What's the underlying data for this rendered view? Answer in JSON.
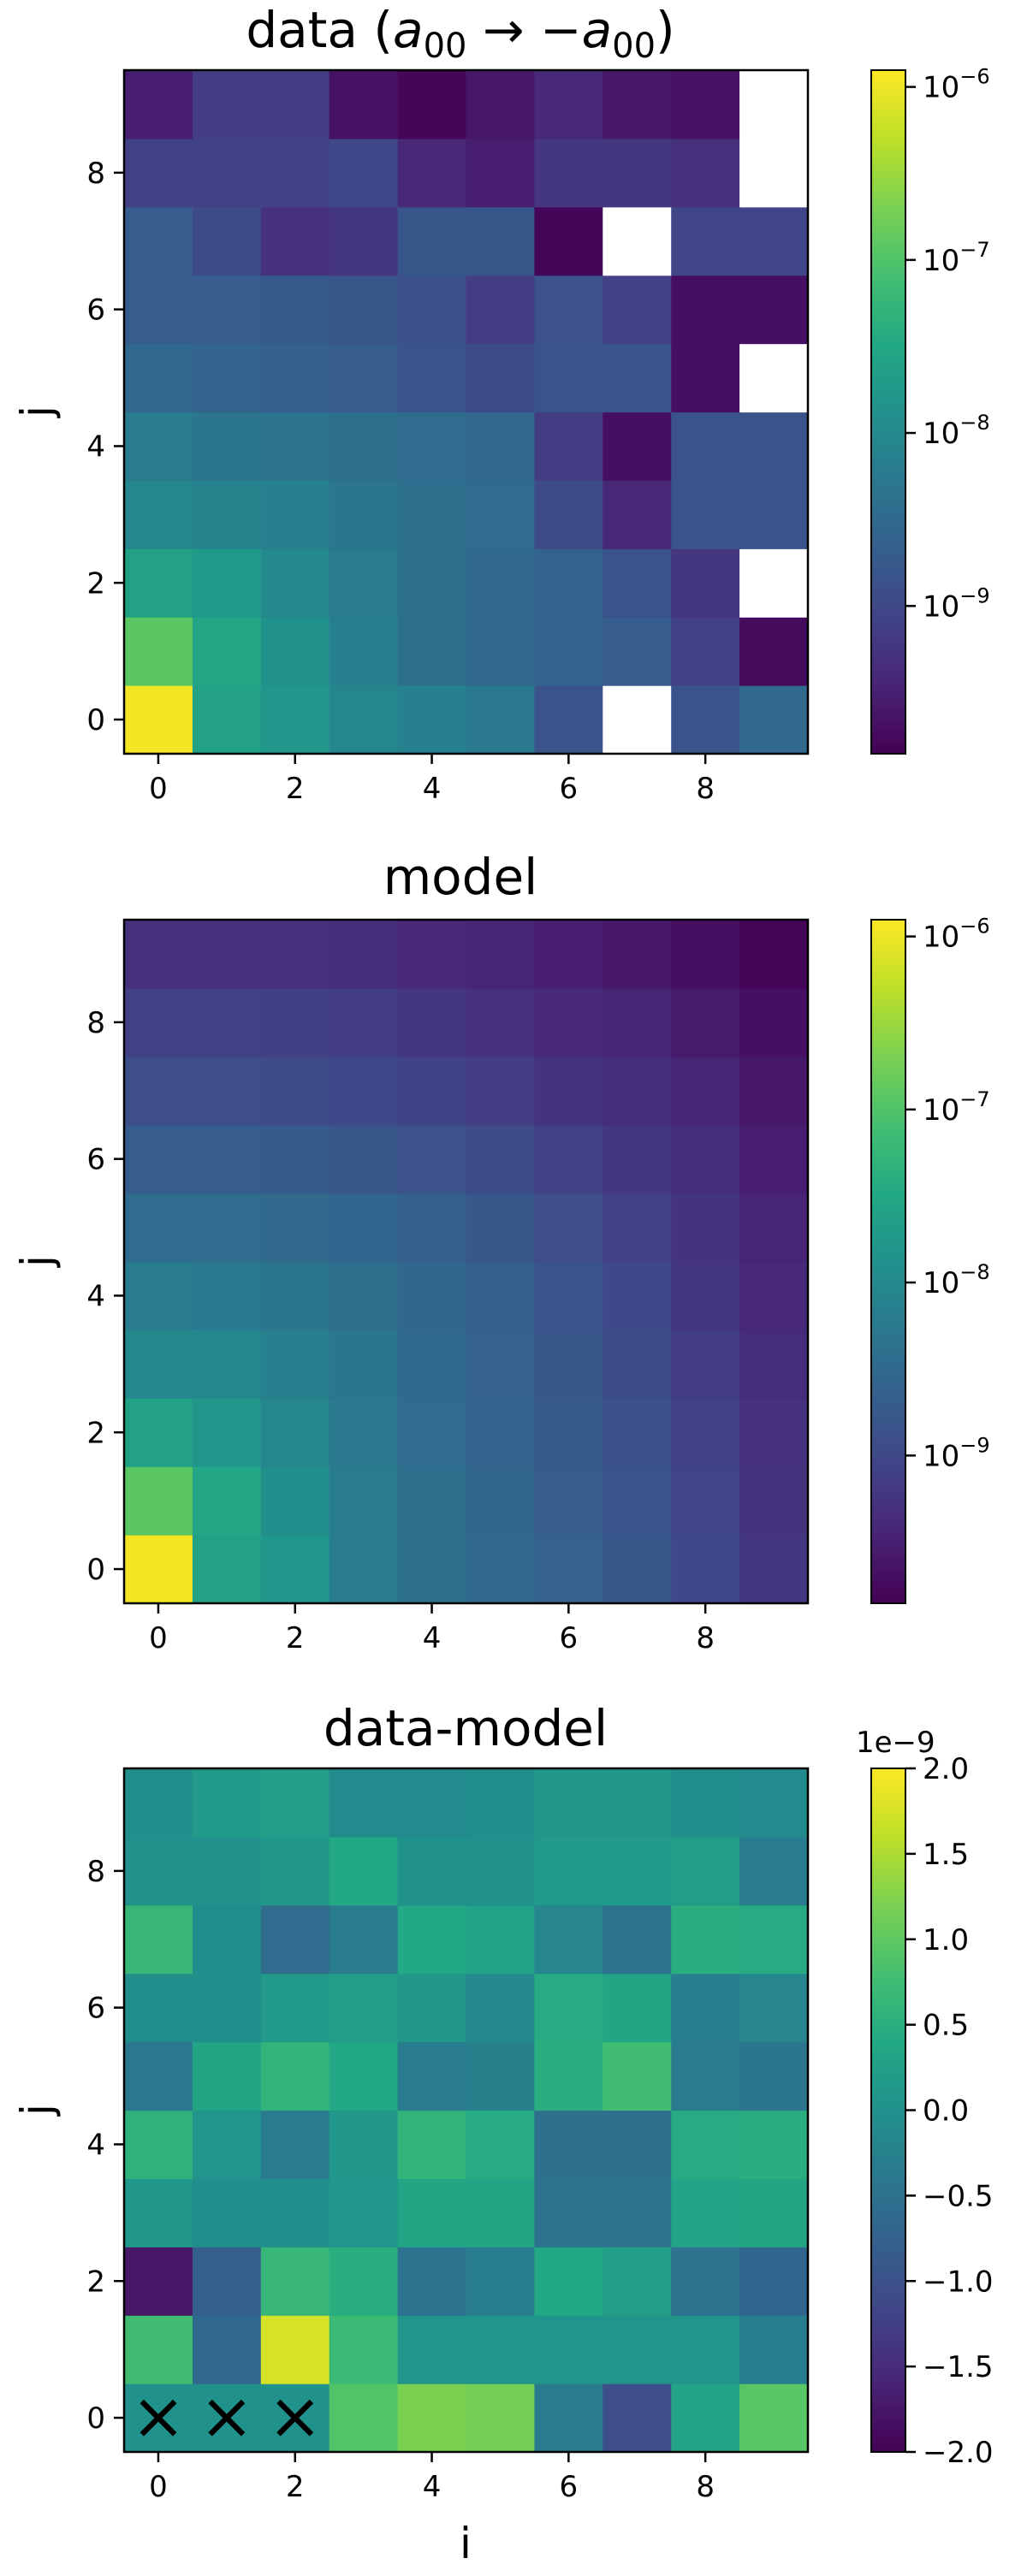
{
  "chart_data": [
    {
      "type": "heatmap",
      "title_plain": "data (",
      "title_math_a": "a",
      "title_math_sub": "00",
      "title_arrow": " → −",
      "title_math_a2": "a",
      "title_math_sub2": "00",
      "title_close": ")",
      "xlabel": "",
      "ylabel": "j",
      "x_ticks": [
        "0",
        "2",
        "4",
        "6",
        "8"
      ],
      "y_ticks": [
        "0",
        "2",
        "4",
        "6",
        "8"
      ],
      "colorscale": "viridis",
      "color_scale_type": "log",
      "clim": [
        1.4e-10,
        1.25e-06
      ],
      "colorbar_ticks": [
        {
          "value": 1e-06,
          "base": "10",
          "exp": "−6"
        },
        {
          "value": 1e-07,
          "base": "10",
          "exp": "−7"
        },
        {
          "value": 1e-08,
          "base": "10",
          "exp": "−8"
        },
        {
          "value": 1e-09,
          "base": "10",
          "exp": "−9"
        }
      ],
      "missing_color": "#ffffff",
      "values_rows_j0_to_j9": [
        [
          1.1e-06,
          2.5e-08,
          1.6e-08,
          9e-09,
          7e-09,
          5.5e-09,
          1.5e-09,
          null,
          1.5e-09,
          3e-09
        ],
        [
          1.2e-07,
          3e-08,
          1.3e-08,
          7e-09,
          4e-09,
          3e-09,
          2.5e-09,
          2e-09,
          8e-10,
          1.8e-10
        ],
        [
          2.5e-08,
          1.8e-08,
          1e-08,
          6e-09,
          4e-09,
          3e-09,
          2.5e-09,
          1.5e-09,
          6e-10,
          null
        ],
        [
          9e-09,
          8e-09,
          7e-09,
          5e-09,
          4e-09,
          3.5e-09,
          1.1e-09,
          4e-10,
          1.5e-09,
          1.5e-09
        ],
        [
          6e-09,
          5e-09,
          4.5e-09,
          4e-09,
          3.5e-09,
          3e-09,
          7e-10,
          2e-10,
          1.5e-09,
          1.5e-09
        ],
        [
          3e-09,
          2.6e-09,
          2.2e-09,
          2e-09,
          1.5e-09,
          1.1e-09,
          1.5e-09,
          1.5e-09,
          2e-10,
          null
        ],
        [
          2e-09,
          2e-09,
          1.8e-09,
          1.6e-09,
          1.3e-09,
          7e-10,
          1.4e-09,
          8e-10,
          2e-10,
          2e-10
        ],
        [
          2e-09,
          1.1e-09,
          5e-10,
          6e-10,
          1.6e-09,
          1.6e-09,
          1.6e-10,
          null,
          9e-10,
          9e-10
        ],
        [
          8e-10,
          8e-10,
          8e-10,
          1e-09,
          4e-10,
          3e-10,
          6e-10,
          6e-10,
          5e-10,
          null
        ],
        [
          3e-10,
          7e-10,
          7e-10,
          2.2e-10,
          1.6e-10,
          2.5e-10,
          4e-10,
          2.5e-10,
          2.2e-10,
          null
        ]
      ]
    },
    {
      "type": "heatmap",
      "title": "model",
      "xlabel": "",
      "ylabel": "j",
      "x_ticks": [
        "0",
        "2",
        "4",
        "6",
        "8"
      ],
      "y_ticks": [
        "0",
        "2",
        "4",
        "6",
        "8"
      ],
      "colorscale": "viridis",
      "color_scale_type": "log",
      "clim": [
        1.4e-10,
        1.25e-06
      ],
      "colorbar_ticks": [
        {
          "value": 1e-06,
          "base": "10",
          "exp": "−6"
        },
        {
          "value": 1e-07,
          "base": "10",
          "exp": "−7"
        },
        {
          "value": 1e-08,
          "base": "10",
          "exp": "−8"
        },
        {
          "value": 1e-09,
          "base": "10",
          "exp": "−9"
        }
      ],
      "values_rows_j0_to_j9": [
        [
          1.1e-06,
          2.5e-08,
          1.6e-08,
          6e-09,
          4e-09,
          3e-09,
          2.4e-09,
          1.7e-09,
          1e-09,
          6e-10
        ],
        [
          1.2e-07,
          3e-08,
          1.2e-08,
          6e-09,
          3.8e-09,
          2.8e-09,
          2e-09,
          1.5e-09,
          9e-10,
          5.5e-10
        ],
        [
          2.5e-08,
          1.6e-08,
          9e-09,
          5.5e-09,
          3.5e-09,
          2.6e-09,
          1.8e-09,
          1.3e-09,
          8e-10,
          5e-10
        ],
        [
          1e-08,
          9e-09,
          7e-09,
          4.8e-09,
          3.2e-09,
          2.4e-09,
          1.6e-09,
          1.1e-09,
          7e-10,
          4.5e-10
        ],
        [
          6e-09,
          5.8e-09,
          5e-09,
          3.8e-09,
          2.8e-09,
          2.1e-09,
          1.5e-09,
          1e-09,
          6e-10,
          4e-10
        ],
        [
          3.5e-09,
          3.4e-09,
          3.1e-09,
          2.7e-09,
          2.2e-09,
          1.7e-09,
          1.2e-09,
          8e-10,
          5.5e-10,
          3.5e-10
        ],
        [
          2e-09,
          2e-09,
          1.8e-09,
          1.6e-09,
          1.4e-09,
          1.1e-09,
          8e-10,
          6e-10,
          4.5e-10,
          3e-10
        ],
        [
          1.2e-09,
          1.2e-09,
          1.1e-09,
          1e-09,
          8.5e-10,
          7e-10,
          5.5e-10,
          4.5e-10,
          3.5e-10,
          2.5e-10
        ],
        [
          8e-10,
          8e-10,
          7.5e-10,
          7e-10,
          6e-10,
          5e-10,
          4e-10,
          3.5e-10,
          2.7e-10,
          2e-10
        ],
        [
          5e-10,
          5e-10,
          4.8e-10,
          4.5e-10,
          4e-10,
          3.5e-10,
          3e-10,
          2.5e-10,
          2e-10,
          1.5e-10
        ]
      ]
    },
    {
      "type": "heatmap",
      "title": "data-model",
      "xlabel": "i",
      "ylabel": "j",
      "x_ticks": [
        "0",
        "2",
        "4",
        "6",
        "8"
      ],
      "y_ticks": [
        "0",
        "2",
        "4",
        "6",
        "8"
      ],
      "colorscale": "viridis",
      "color_scale_type": "linear",
      "clim": [
        -2.0,
        2.0
      ],
      "colorbar_offset_label": "1e−9",
      "colorbar_ticks": [
        {
          "value": 2.0,
          "label": "2.0"
        },
        {
          "value": 1.5,
          "label": "1.5"
        },
        {
          "value": 1.0,
          "label": "1.0"
        },
        {
          "value": 0.5,
          "label": "0.5"
        },
        {
          "value": 0.0,
          "label": "0.0"
        },
        {
          "value": -0.5,
          "label": "−0.5"
        },
        {
          "value": -1.0,
          "label": "−1.0"
        },
        {
          "value": -1.5,
          "label": "−1.5"
        },
        {
          "value": -2.0,
          "label": "−2.0"
        }
      ],
      "masked_marker": "×",
      "masked_cells": [
        [
          0,
          0
        ],
        [
          1,
          0
        ],
        [
          2,
          0
        ]
      ],
      "values_rows_j0_to_j9": [
        [
          0.0,
          0.0,
          0.0,
          0.9,
          1.2,
          1.15,
          -0.35,
          -1.05,
          0.3,
          0.95
        ],
        [
          0.75,
          -0.65,
          1.75,
          0.7,
          0.05,
          0.05,
          0.05,
          0.05,
          0.05,
          -0.3
        ],
        [
          -1.75,
          -0.8,
          0.65,
          0.5,
          -0.5,
          -0.3,
          0.4,
          0.2,
          -0.5,
          -0.7
        ],
        [
          0.1,
          -0.05,
          -0.05,
          0.05,
          0.35,
          0.35,
          -0.5,
          -0.5,
          0.3,
          0.35
        ],
        [
          0.55,
          0.05,
          -0.35,
          0.1,
          0.6,
          0.45,
          -0.55,
          -0.55,
          0.45,
          0.5
        ],
        [
          -0.4,
          0.35,
          0.6,
          0.4,
          -0.35,
          -0.25,
          0.5,
          0.75,
          -0.35,
          -0.45
        ],
        [
          -0.05,
          -0.05,
          0.15,
          0.2,
          0.1,
          -0.15,
          0.45,
          0.35,
          -0.3,
          -0.2
        ],
        [
          0.65,
          -0.05,
          -0.6,
          -0.35,
          0.4,
          0.3,
          -0.2,
          -0.5,
          0.5,
          0.45
        ],
        [
          0.0,
          0.0,
          0.1,
          0.4,
          0.0,
          0.0,
          0.15,
          0.15,
          0.2,
          -0.35
        ],
        [
          -0.05,
          0.15,
          0.2,
          -0.1,
          -0.1,
          -0.05,
          0.1,
          0.1,
          -0.05,
          -0.1
        ]
      ]
    }
  ]
}
